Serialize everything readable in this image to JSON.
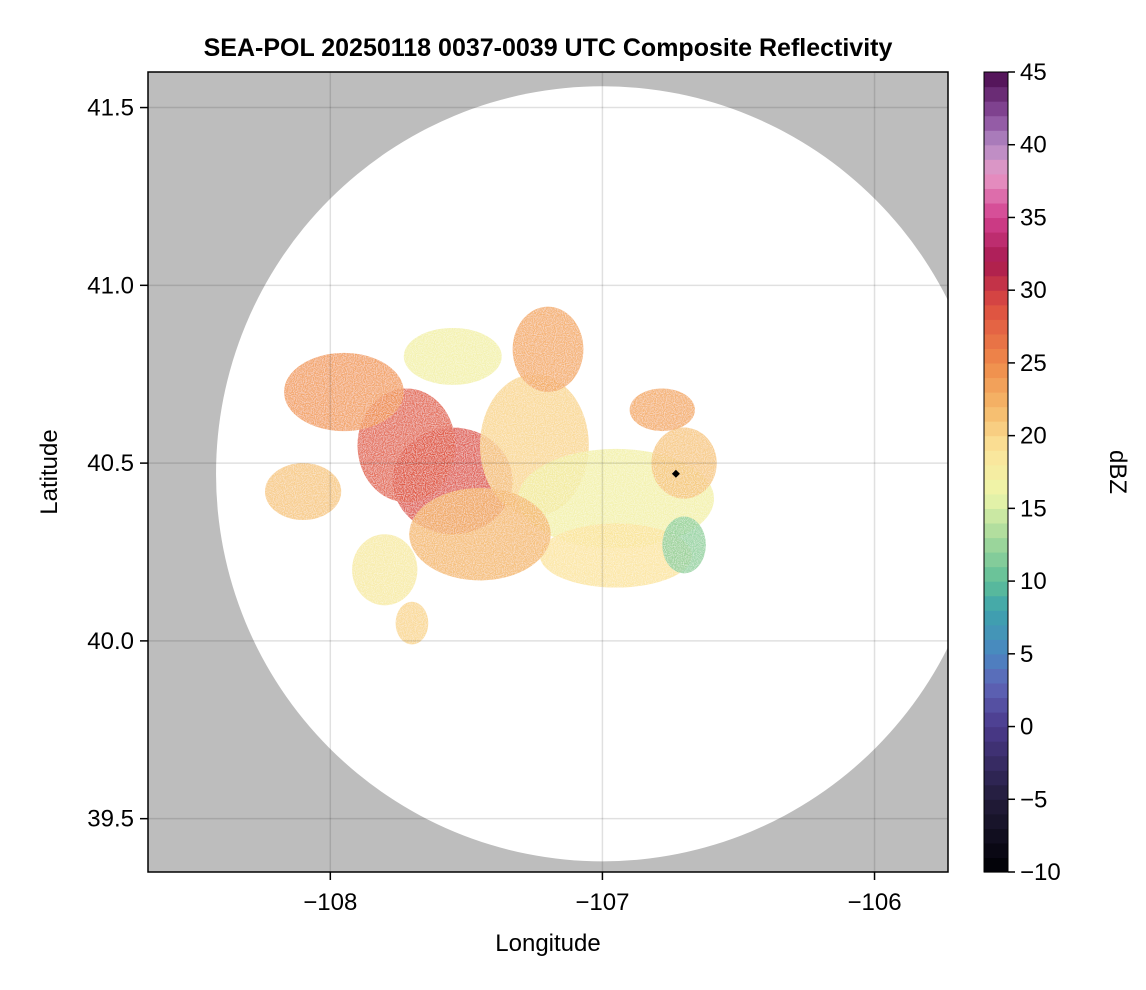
{
  "chart_data": {
    "type": "heatmap",
    "title": "SEA-POL 20250118 0037-0039 UTC Composite Reflectivity",
    "xlabel": "Longitude",
    "ylabel": "Latitude",
    "xlim": [
      -108.67,
      -105.73
    ],
    "ylim": [
      39.35,
      41.6
    ],
    "x_ticks": [
      -108,
      -107,
      -106
    ],
    "x_tick_labels": [
      "−108",
      "−107",
      "−106"
    ],
    "y_ticks": [
      41.5,
      41.0,
      40.5,
      40.0,
      39.5
    ],
    "y_tick_labels": [
      "41.5",
      "41.0",
      "40.5",
      "40.0",
      "39.5"
    ],
    "grid": true,
    "outside_range_color": "#bdbdbd",
    "no_echo_color": "#ffffff",
    "radar": {
      "center_lon": -106.73,
      "center_lat": 40.47,
      "range_circle_center_lon": -107.0,
      "range_circle_center_lat": 40.47,
      "range_circle_half_width_deg_lon": 1.42,
      "range_circle_half_height_deg_lat": 1.09
    },
    "colorbar": {
      "label": "dBZ",
      "min": -10,
      "max": 45,
      "ticks": [
        45,
        40,
        35,
        30,
        25,
        20,
        15,
        10,
        5,
        0,
        -5,
        -10
      ],
      "tick_labels": [
        "45",
        "40",
        "35",
        "30",
        "25",
        "20",
        "15",
        "10",
        "5",
        "0",
        "−5",
        "−10"
      ],
      "stops": [
        {
          "v": -10,
          "c": "#000004"
        },
        {
          "v": -5,
          "c": "#221c3a"
        },
        {
          "v": 0,
          "c": "#4b3a8c"
        },
        {
          "v": 3,
          "c": "#5e66b8"
        },
        {
          "v": 5,
          "c": "#4a86c1"
        },
        {
          "v": 8,
          "c": "#3ea3ad"
        },
        {
          "v": 10,
          "c": "#5fbf98"
        },
        {
          "v": 13,
          "c": "#a6d99c"
        },
        {
          "v": 16,
          "c": "#eef6aa"
        },
        {
          "v": 19,
          "c": "#fbe49a"
        },
        {
          "v": 22,
          "c": "#f5b769"
        },
        {
          "v": 25,
          "c": "#ef8a4a"
        },
        {
          "v": 29,
          "c": "#dd4d40"
        },
        {
          "v": 32,
          "c": "#a8194f"
        },
        {
          "v": 35,
          "c": "#d2408e"
        },
        {
          "v": 38,
          "c": "#e79ac7"
        },
        {
          "v": 40,
          "c": "#b38ac4"
        },
        {
          "v": 42,
          "c": "#8a4d9c"
        },
        {
          "v": 45,
          "c": "#4a0b4e"
        }
      ]
    },
    "echo_regions": [
      {
        "lon": -107.55,
        "lat": 40.45,
        "rlon": 0.22,
        "rlat": 0.15,
        "dbz": 29
      },
      {
        "lon": -107.72,
        "lat": 40.55,
        "rlon": 0.18,
        "rlat": 0.16,
        "dbz": 28
      },
      {
        "lon": -107.95,
        "lat": 40.7,
        "rlon": 0.22,
        "rlat": 0.11,
        "dbz": 24
      },
      {
        "lon": -107.25,
        "lat": 40.55,
        "rlon": 0.2,
        "rlat": 0.2,
        "dbz": 20
      },
      {
        "lon": -107.2,
        "lat": 40.82,
        "rlon": 0.13,
        "rlat": 0.12,
        "dbz": 23
      },
      {
        "lon": -106.95,
        "lat": 40.4,
        "rlon": 0.36,
        "rlat": 0.14,
        "dbz": 17
      },
      {
        "lon": -106.7,
        "lat": 40.5,
        "rlon": 0.12,
        "rlat": 0.1,
        "dbz": 21
      },
      {
        "lon": -106.95,
        "lat": 40.24,
        "rlon": 0.28,
        "rlat": 0.09,
        "dbz": 19
      },
      {
        "lon": -107.45,
        "lat": 40.3,
        "rlon": 0.26,
        "rlat": 0.13,
        "dbz": 22
      },
      {
        "lon": -108.1,
        "lat": 40.42,
        "rlon": 0.14,
        "rlat": 0.08,
        "dbz": 21
      },
      {
        "lon": -107.8,
        "lat": 40.2,
        "rlon": 0.12,
        "rlat": 0.1,
        "dbz": 18
      },
      {
        "lon": -106.78,
        "lat": 40.65,
        "rlon": 0.12,
        "rlat": 0.06,
        "dbz": 23
      },
      {
        "lon": -107.55,
        "lat": 40.8,
        "rlon": 0.18,
        "rlat": 0.08,
        "dbz": 17
      },
      {
        "lon": -106.7,
        "lat": 40.27,
        "rlon": 0.08,
        "rlat": 0.08,
        "dbz": 12
      },
      {
        "lon": -107.7,
        "lat": 40.05,
        "rlon": 0.06,
        "rlat": 0.06,
        "dbz": 20
      }
    ]
  }
}
